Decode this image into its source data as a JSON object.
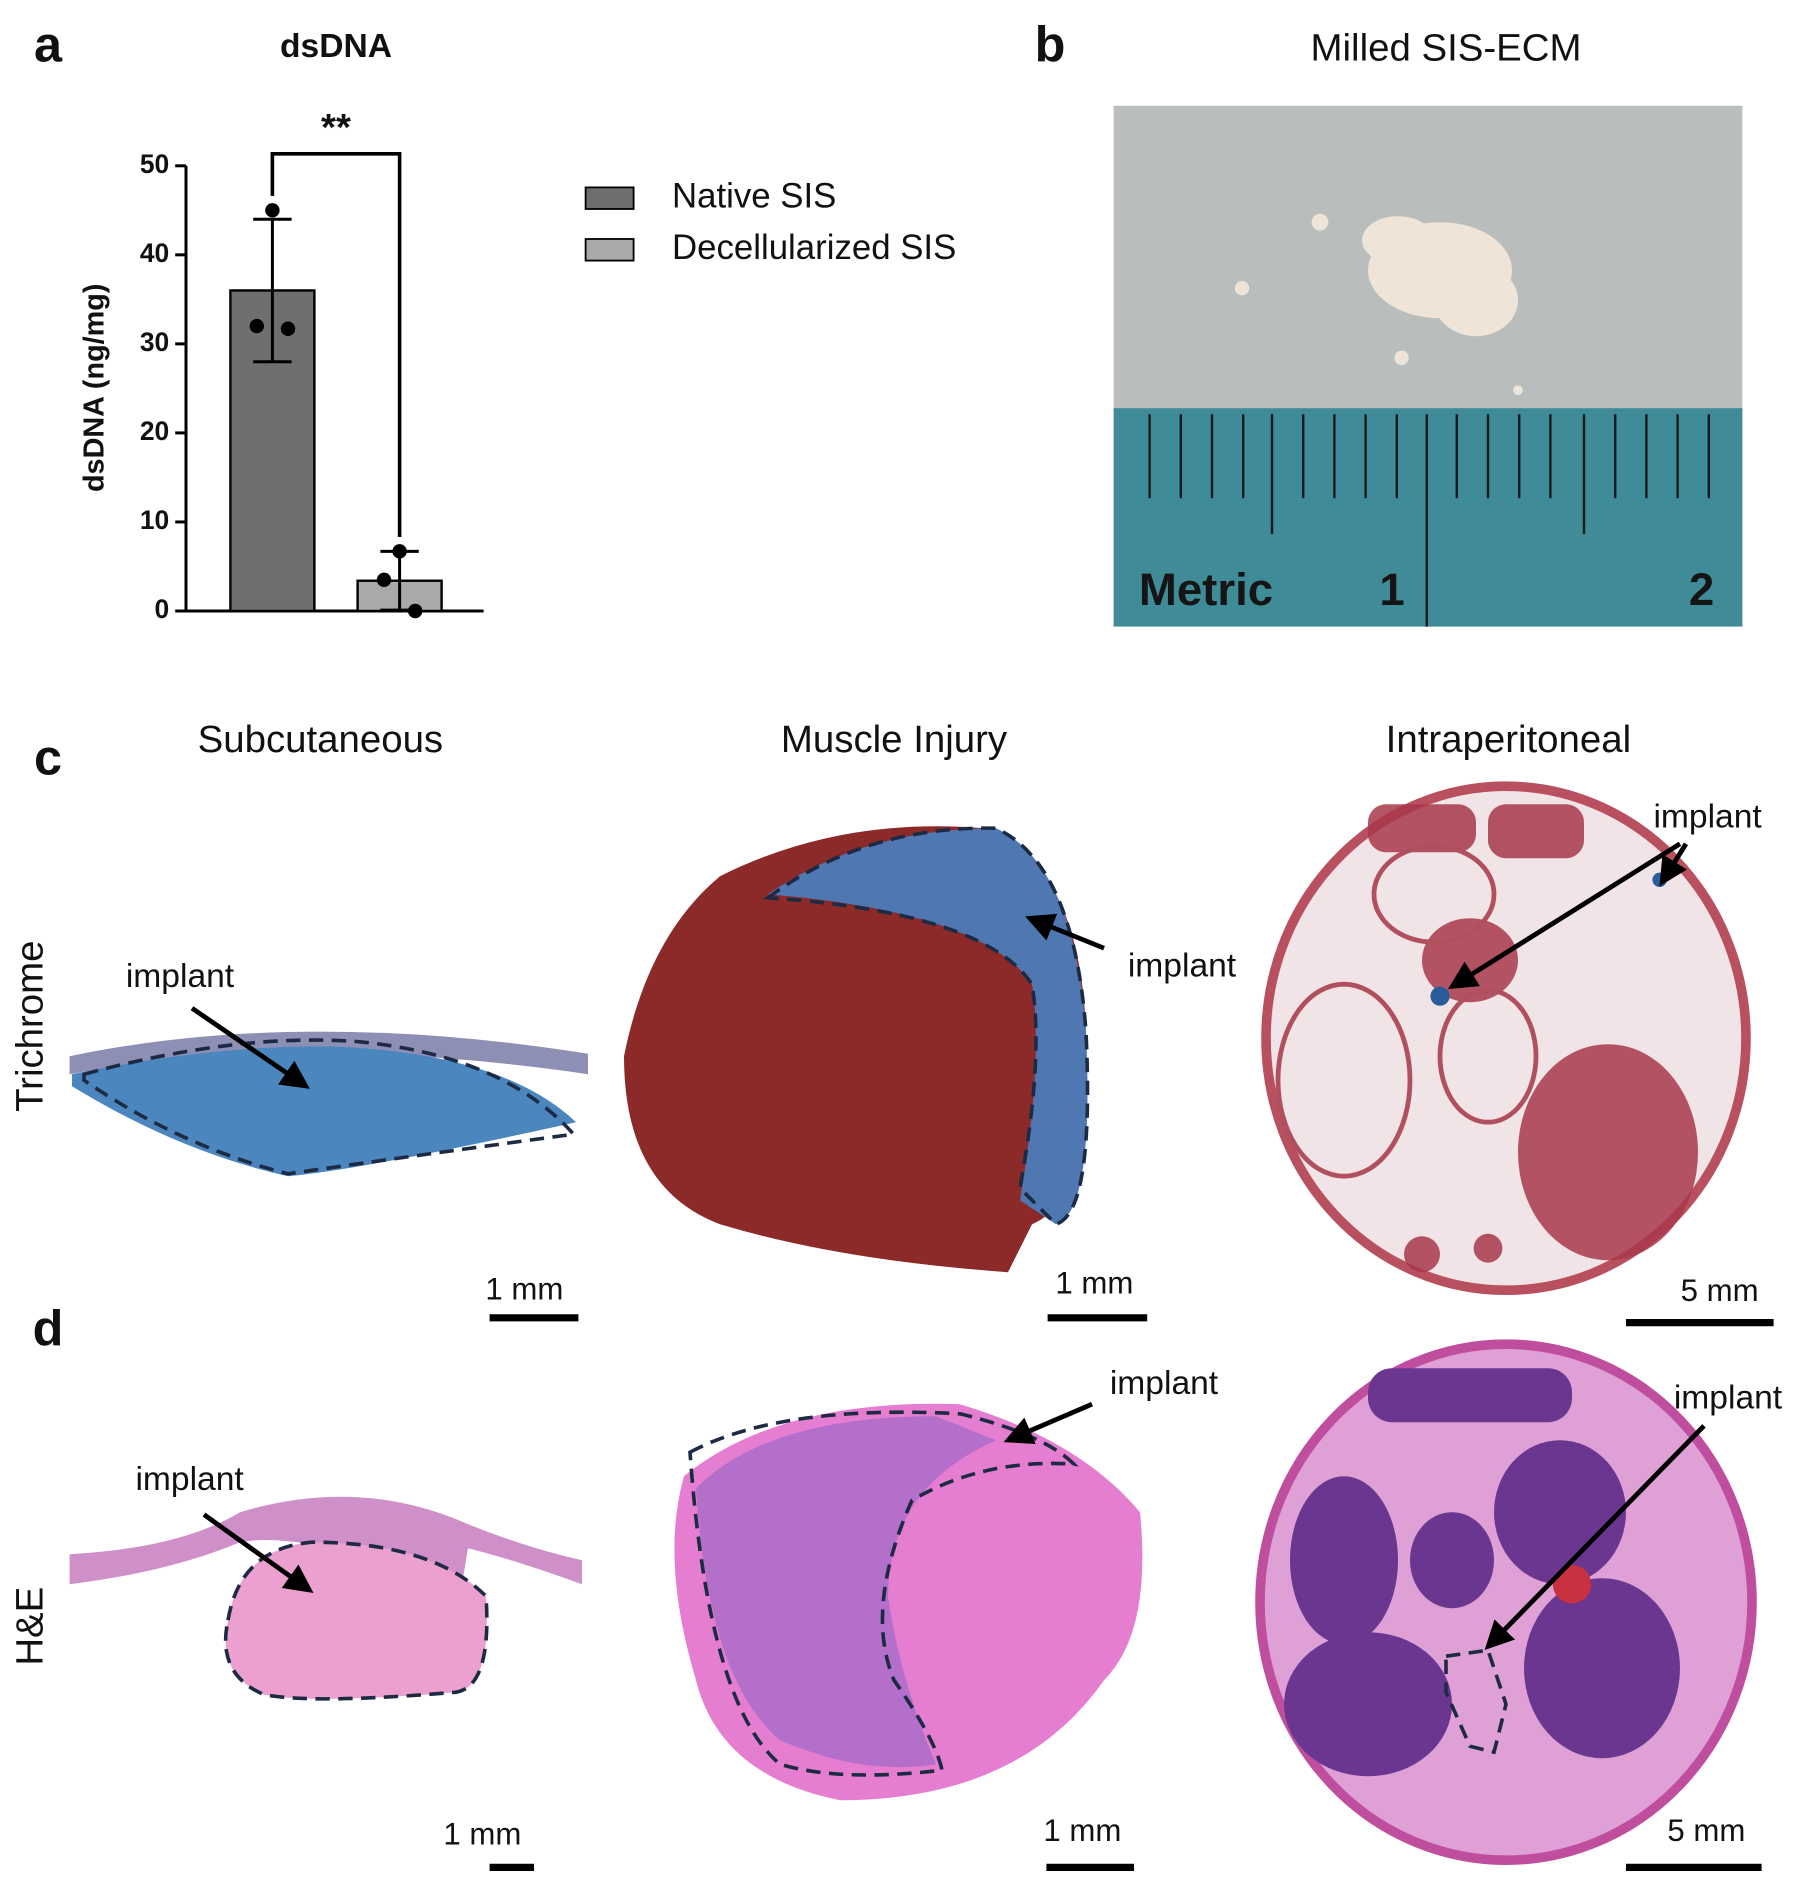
{
  "figure": {
    "panel_labels": [
      "a",
      "b",
      "c",
      "d"
    ],
    "panel_b": {
      "title": "Milled SIS-ECM",
      "ruler_labels": [
        "Metric",
        "1",
        "2"
      ]
    },
    "columns": [
      "Subcutaneous",
      "Muscle Injury",
      "Intraperitoneal"
    ],
    "rows": [
      "Trichrome",
      "H&E"
    ],
    "annotations": [
      "implant",
      "implant",
      "implant",
      "implant",
      "implant",
      "implant"
    ],
    "scale_bars": [
      "1 mm",
      "1 mm",
      "5 mm",
      "1 mm",
      "1 mm",
      "5 mm"
    ]
  },
  "chart_data": {
    "type": "bar",
    "title": "dsDNA",
    "ylabel": "dsDNA (ng/mg)",
    "significance": "**",
    "ylim": [
      0,
      50
    ],
    "yticks": [
      0,
      10,
      20,
      30,
      40,
      50
    ],
    "series": [
      {
        "name": "Native SIS",
        "color": "#6f6f6f",
        "values": [
          36
        ],
        "errors": [
          8
        ],
        "points": [
          45,
          32,
          31.7
        ]
      },
      {
        "name": "Decellularized SIS",
        "color": "#a9a9a9",
        "values": [
          3.4
        ],
        "errors": [
          3.3
        ],
        "points": [
          6.7,
          3.5,
          0
        ]
      }
    ]
  }
}
